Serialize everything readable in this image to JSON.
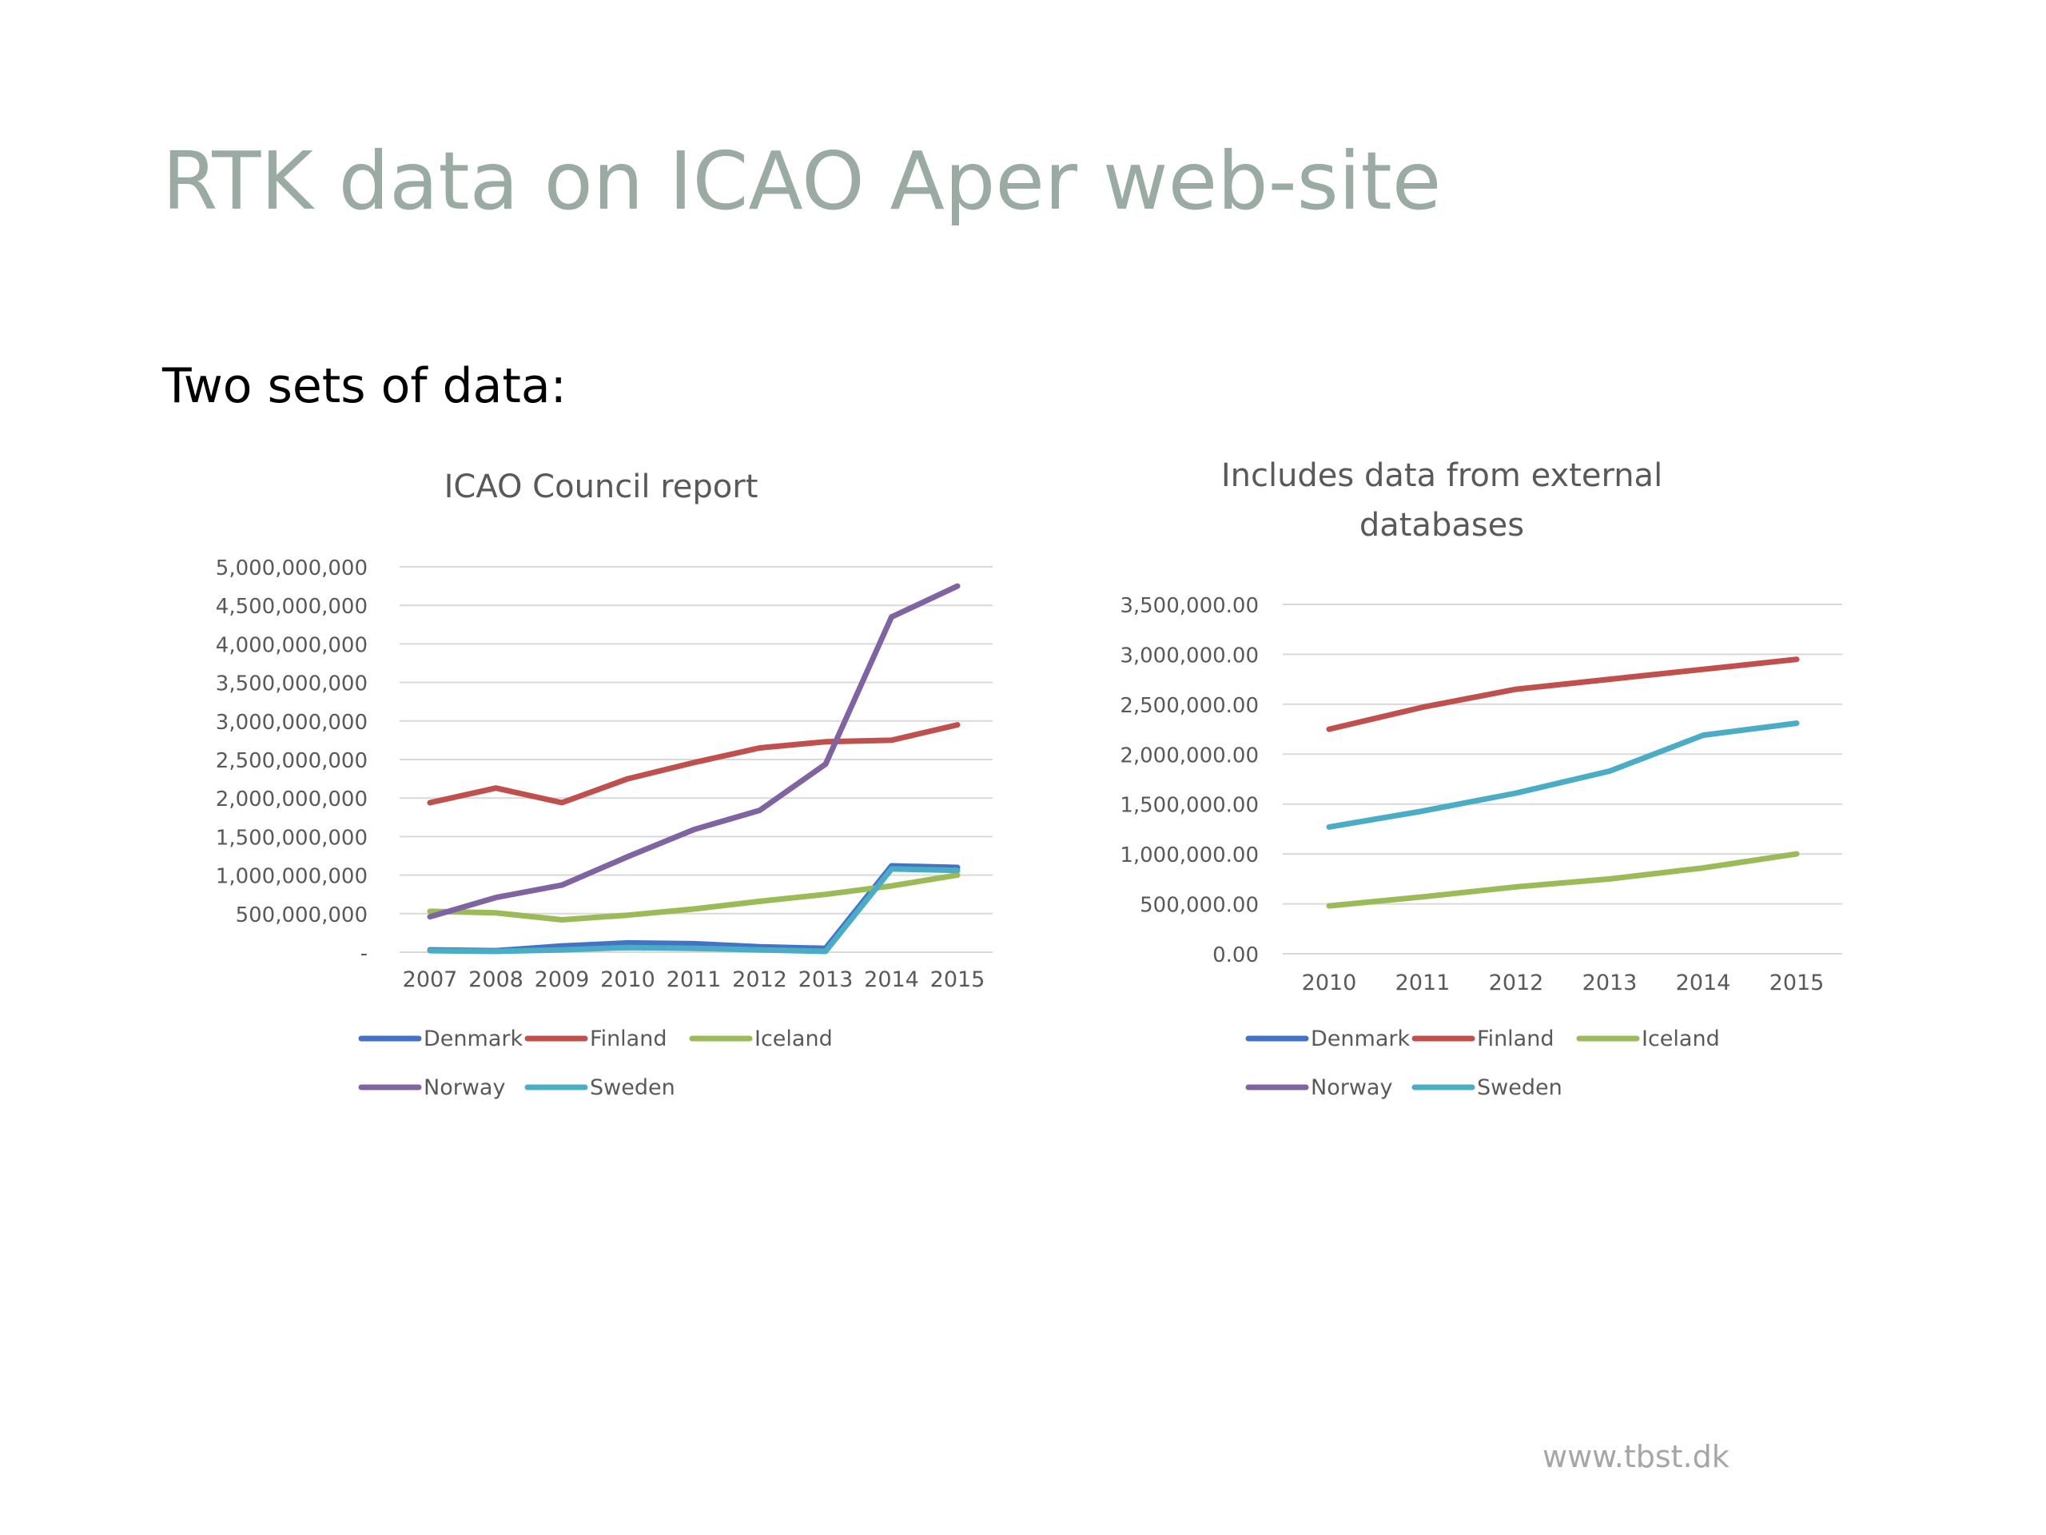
{
  "slide": {
    "title": "RTK data on ICAO Aper web-site",
    "subtitle": "Two sets of data:",
    "footer": "www.tbst.dk"
  },
  "colors": {
    "Denmark": "#4472c4",
    "Finland": "#c0504d",
    "Iceland": "#9bbb59",
    "Norway": "#8064a2",
    "Sweden": "#4bacc6",
    "grid": "#d9d9d9",
    "axis_text": "#595959"
  },
  "chart_data": [
    {
      "type": "line",
      "title": "ICAO Council report",
      "x": [
        "2007",
        "2008",
        "2009",
        "2010",
        "2011",
        "2012",
        "2013",
        "2014",
        "2015"
      ],
      "ylim": [
        0,
        5000000000
      ],
      "yticks": [
        "-",
        "500,000,000",
        "1,000,000,000",
        "1,500,000,000",
        "2,000,000,000",
        "2,500,000,000",
        "3,000,000,000",
        "3,500,000,000",
        "4,000,000,000",
        "4,500,000,000",
        "5,000,000,000"
      ],
      "legend": "bottom",
      "grid": true,
      "series": [
        {
          "name": "Denmark",
          "values": [
            30000000,
            20000000,
            80000000,
            120000000,
            110000000,
            70000000,
            50000000,
            1120000000,
            1100000000
          ]
        },
        {
          "name": "Finland",
          "values": [
            1940000000,
            2130000000,
            1940000000,
            2250000000,
            2460000000,
            2650000000,
            2730000000,
            2750000000,
            2950000000
          ]
        },
        {
          "name": "Iceland",
          "values": [
            530000000,
            510000000,
            420000000,
            480000000,
            560000000,
            660000000,
            750000000,
            860000000,
            1000000000
          ]
        },
        {
          "name": "Norway",
          "values": [
            460000000,
            710000000,
            870000000,
            1240000000,
            1590000000,
            1840000000,
            2440000000,
            4350000000,
            4750000000
          ]
        },
        {
          "name": "Sweden",
          "values": [
            20000000,
            10000000,
            30000000,
            60000000,
            50000000,
            30000000,
            10000000,
            1080000000,
            1060000000
          ]
        }
      ]
    },
    {
      "type": "line",
      "title": "Includes data from external databases",
      "x": [
        "2010",
        "2011",
        "2012",
        "2013",
        "2014",
        "2015"
      ],
      "ylim": [
        0,
        3500000
      ],
      "yticks": [
        "0.00",
        "500,000.00",
        "1,000,000.00",
        "1,500,000.00",
        "2,000,000.00",
        "2,500,000.00",
        "3,000,000.00",
        "3,500,000.00"
      ],
      "legend": "bottom",
      "grid": true,
      "series": [
        {
          "name": "Denmark",
          "values": null
        },
        {
          "name": "Finland",
          "values": [
            2250000,
            2470000,
            2650000,
            2750000,
            2850000,
            2950000
          ]
        },
        {
          "name": "Iceland",
          "values": [
            480000,
            570000,
            670000,
            750000,
            860000,
            1000000
          ]
        },
        {
          "name": "Norway",
          "values": null
        },
        {
          "name": "Sweden",
          "values": [
            1270000,
            1430000,
            1610000,
            1830000,
            2190000,
            2310000
          ]
        }
      ]
    }
  ]
}
